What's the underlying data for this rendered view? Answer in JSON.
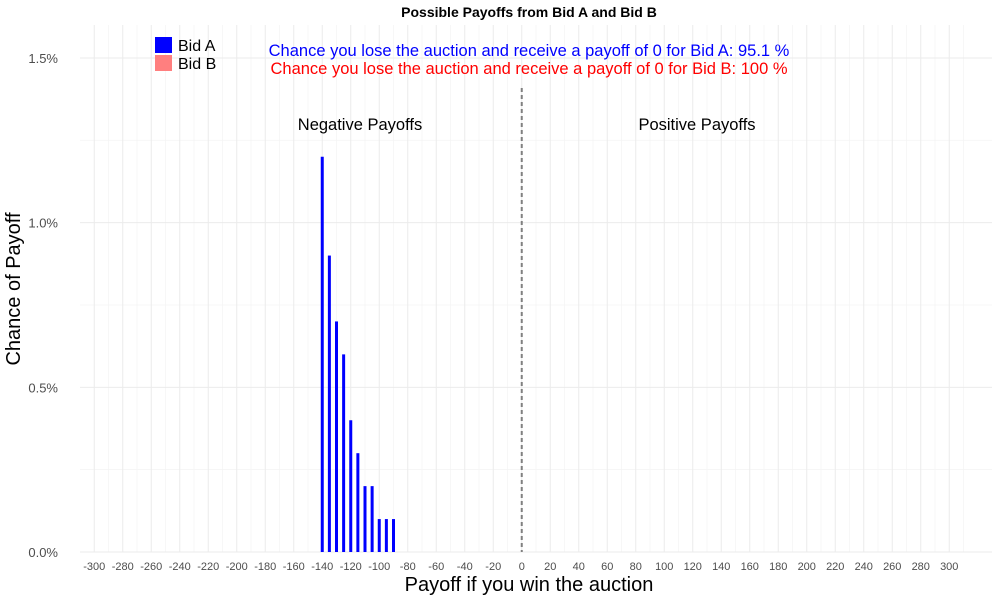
{
  "chart_data": {
    "type": "bar",
    "title": "Possible Payoffs from Bid A and Bid B",
    "xlabel": "Payoff if you win the auction",
    "ylabel": "Chance of Payoff",
    "xlim": [
      -310,
      330
    ],
    "ylim": [
      0,
      1.6
    ],
    "x_ticks": [
      -300,
      -280,
      -260,
      -240,
      -220,
      -200,
      -180,
      -160,
      -140,
      -120,
      -100,
      -80,
      -60,
      -40,
      -20,
      0,
      20,
      40,
      60,
      80,
      100,
      120,
      140,
      160,
      180,
      200,
      220,
      240,
      260,
      280,
      300
    ],
    "x_tick_labels": [
      "-300",
      "-280",
      "-260",
      "-240",
      "-220",
      "-200",
      "-180",
      "-160",
      "-140",
      "-120",
      "-100",
      "-80",
      "-60",
      "-40",
      "-20",
      "0",
      "20",
      "40",
      "60",
      "80",
      "100",
      "120",
      "140",
      "160",
      "180",
      "200",
      "220",
      "240",
      "260",
      "280",
      "300"
    ],
    "y_ticks": [
      0,
      0.5,
      1.0,
      1.5
    ],
    "y_tick_labels": [
      "0.0%",
      "0.5%",
      "1.0%",
      "1.5%"
    ],
    "grid": true,
    "legend_position": "top-left",
    "series": [
      {
        "name": "Bid A",
        "color": "#0000ff",
        "points": [
          {
            "x": -140,
            "y": 1.2
          },
          {
            "x": -135,
            "y": 0.9
          },
          {
            "x": -130,
            "y": 0.7
          },
          {
            "x": -125,
            "y": 0.6
          },
          {
            "x": -120,
            "y": 0.4
          },
          {
            "x": -115,
            "y": 0.3
          },
          {
            "x": -110,
            "y": 0.2
          },
          {
            "x": -105,
            "y": 0.2
          },
          {
            "x": -100,
            "y": 0.1
          },
          {
            "x": -95,
            "y": 0.1
          },
          {
            "x": -90,
            "y": 0.1
          }
        ]
      },
      {
        "name": "Bid B",
        "color": "#ff7f7f",
        "points": []
      }
    ],
    "reference_line": {
      "x": 0,
      "style": "dashed",
      "color": "#808080"
    },
    "annotations": {
      "bid_a_text": "Chance you lose the auction and receive a payoff of 0 for Bid A:  95.1 %",
      "bid_b_text": "Chance you lose the auction and receive a payoff of 0 for Bid B:  100 %",
      "negative_label": "Negative Payoffs",
      "positive_label": "Positive Payoffs"
    }
  }
}
